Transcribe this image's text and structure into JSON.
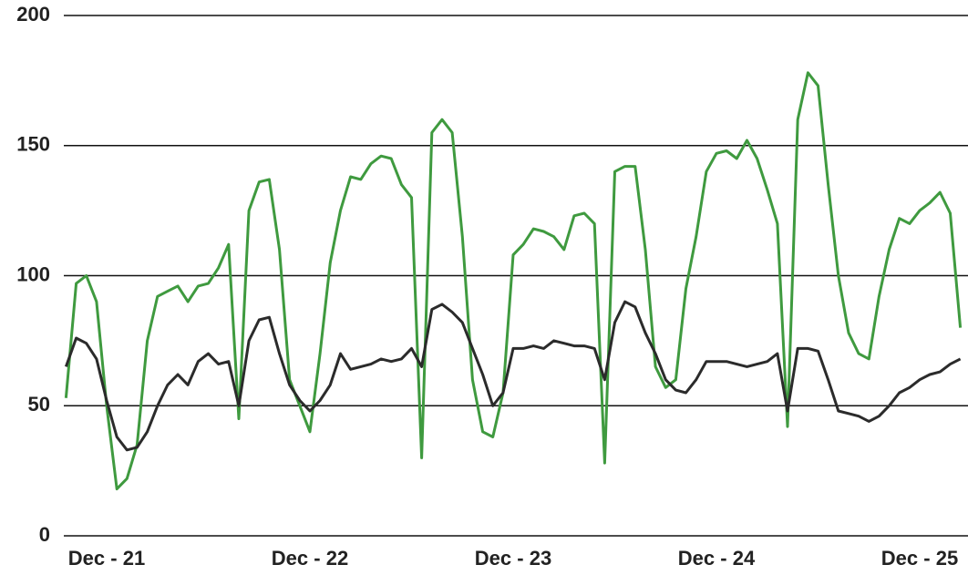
{
  "chart_data": {
    "type": "line",
    "categories": [
      null,
      null,
      null,
      null,
      "Dec - 21",
      null,
      null,
      null,
      null,
      null,
      null,
      null,
      null,
      null,
      null,
      null,
      null,
      null,
      null,
      null,
      null,
      null,
      null,
      null,
      "Dec - 22",
      null,
      null,
      null,
      null,
      null,
      null,
      null,
      null,
      null,
      null,
      null,
      null,
      null,
      null,
      null,
      null,
      null,
      null,
      null,
      "Dec - 23",
      null,
      null,
      null,
      null,
      null,
      null,
      null,
      null,
      null,
      null,
      null,
      null,
      null,
      null,
      null,
      null,
      null,
      null,
      null,
      "Dec - 24",
      null,
      null,
      null,
      null,
      null,
      null,
      null,
      null,
      null,
      null,
      null,
      null,
      null,
      null,
      null,
      null,
      null,
      null,
      null,
      "Dec - 25",
      null,
      null,
      null,
      null
    ],
    "series": [
      {
        "color": "#3f9a3f",
        "values": [
          53,
          97,
          100,
          90,
          50,
          18,
          22,
          35,
          75,
          92,
          94,
          96,
          90,
          96,
          97,
          103,
          112,
          45,
          125,
          136,
          137,
          110,
          60,
          50,
          40,
          70,
          105,
          125,
          138,
          137,
          143,
          146,
          145,
          135,
          130,
          30,
          155,
          160,
          155,
          115,
          60,
          40,
          38,
          55,
          108,
          112,
          118,
          117,
          115,
          110,
          123,
          124,
          120,
          28,
          140,
          142,
          142,
          110,
          65,
          57,
          60,
          95,
          115,
          140,
          147,
          148,
          145,
          152,
          145,
          133,
          120,
          42,
          160,
          178,
          173,
          135,
          100,
          78,
          70,
          68,
          92,
          110,
          122,
          120,
          125,
          128,
          132,
          124,
          80
        ]
      },
      {
        "color": "#2b2b2b",
        "values": [
          65,
          76,
          74,
          68,
          52,
          38,
          33,
          34,
          40,
          50,
          58,
          62,
          58,
          67,
          70,
          66,
          67,
          50,
          75,
          83,
          84,
          70,
          58,
          52,
          48,
          52,
          58,
          70,
          64,
          65,
          66,
          68,
          67,
          68,
          72,
          65,
          87,
          89,
          86,
          82,
          72,
          62,
          50,
          55,
          72,
          72,
          73,
          72,
          75,
          74,
          73,
          73,
          72,
          60,
          82,
          90,
          88,
          78,
          70,
          60,
          56,
          55,
          60,
          67,
          67,
          67,
          66,
          65,
          66,
          67,
          70,
          48,
          72,
          72,
          71,
          60,
          48,
          47,
          46,
          44,
          46,
          50,
          55,
          57,
          60,
          62,
          63,
          66,
          68
        ]
      }
    ],
    "ylim": [
      0,
      200
    ],
    "yticks": [
      0,
      50,
      100,
      150,
      200
    ],
    "grid": true
  }
}
